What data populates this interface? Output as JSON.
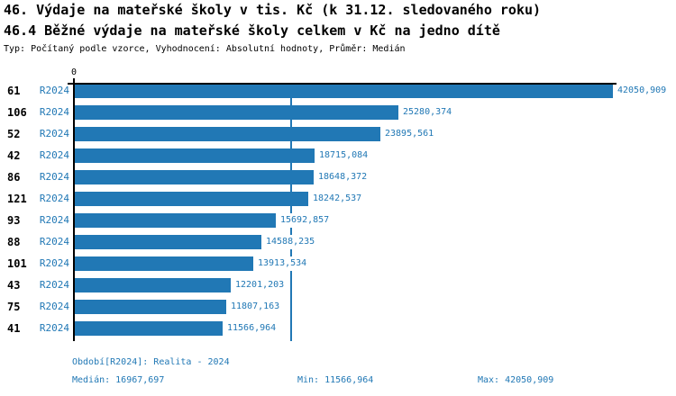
{
  "header": {
    "title_line1": "46. Výdaje na mateřské školy v tis. Kč (k 31.12. sledovaného roku)",
    "title_line2": "46.4 Běžné výdaje na mateřské školy celkem v Kč na jedno dítě",
    "subtitle": "Typ: Počítaný podle vzorce, Vyhodnocení: Absolutní hodnoty, Průměr: Medián"
  },
  "chart_data": {
    "type": "bar",
    "orientation": "horizontal",
    "title": "46.4 Běžné výdaje na mateřské školy celkem v Kč na jedno dítě",
    "period_label": "R2024",
    "categories": [
      "61",
      "106",
      "52",
      "42",
      "86",
      "121",
      "93",
      "88",
      "101",
      "43",
      "75",
      "41"
    ],
    "values": [
      42050.909,
      25280.374,
      23895.561,
      18715.084,
      18648.372,
      18242.537,
      15692.857,
      14588.235,
      13913.534,
      12201.203,
      11807.163,
      11566.964
    ],
    "value_labels": [
      "42050,909",
      "25280,374",
      "23895,561",
      "18715,084",
      "18648,372",
      "18242,537",
      "15692,857",
      "14588,235",
      "13913,534",
      "12201,203",
      "11807,163",
      "11566,964"
    ],
    "xlim": [
      0,
      42050.909
    ],
    "x_axis": {
      "zero_label": "0",
      "position": "top"
    },
    "median_value": 16967.697,
    "grid": false,
    "colors": {
      "bar": "#2178b5",
      "label_text": "#2178b5",
      "category_text": "#000000",
      "axis": "#000000",
      "median_line": "#2178b5",
      "footer_text": "#2178b5"
    }
  },
  "footer": {
    "period": "Období[R2024]: Realita - 2024",
    "median": "Medián: 16967,697",
    "min": "Min: 11566,964",
    "max": "Max: 42050,909"
  }
}
